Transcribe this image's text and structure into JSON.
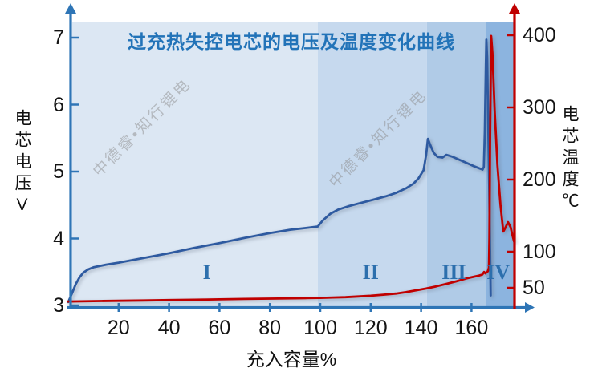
{
  "watermark": {
    "text": "中德睿•知行锂电"
  },
  "chart_data": {
    "type": "line",
    "title": "过充热失控电芯的电压及温度变化曲线",
    "xlabel": "充入容量%",
    "ylabel_left": "电芯电压V",
    "ylabel_right": "电芯温度℃",
    "xlim": [
      0,
      178
    ],
    "x_ticks": [
      20,
      40,
      60,
      80,
      100,
      120,
      140,
      160
    ],
    "ylim_left": [
      3,
      7.2
    ],
    "y_left_ticks": [
      3,
      4,
      5,
      6,
      7
    ],
    "ylim_right": [
      0,
      430
    ],
    "y_right_ticks": [
      50,
      100,
      200,
      300,
      400
    ],
    "axis_color_left": "#2e75b6",
    "axis_color_right": "#c00000",
    "grid": false,
    "legend": "none",
    "regions": [
      {
        "label": "I",
        "x_from": 0,
        "x_to": 99,
        "color": "#dce7f3",
        "label_x": 55
      },
      {
        "label": "II",
        "x_from": 99,
        "x_to": 142.3,
        "color": "#c6d9ee",
        "label_x": 120
      },
      {
        "label": "III",
        "x_from": 142.3,
        "x_to": 165.6,
        "color": "#b0cbe7",
        "label_x": 153
      },
      {
        "label": "IV",
        "x_from": 165.6,
        "x_to": 177,
        "color": "#8cb4df",
        "label_x": 170.6
      }
    ],
    "series": [
      {
        "name": "电芯电压",
        "y_axis": "left",
        "color": "#2e5aa0",
        "points": [
          [
            0,
            3.05
          ],
          [
            1.5,
            3.18
          ],
          [
            3,
            3.32
          ],
          [
            4.5,
            3.42
          ],
          [
            6,
            3.49
          ],
          [
            8,
            3.54
          ],
          [
            10,
            3.57
          ],
          [
            15,
            3.61
          ],
          [
            20,
            3.64
          ],
          [
            30,
            3.71
          ],
          [
            40,
            3.78
          ],
          [
            50,
            3.86
          ],
          [
            60,
            3.93
          ],
          [
            70,
            4.01
          ],
          [
            80,
            4.08
          ],
          [
            88,
            4.13
          ],
          [
            95,
            4.16
          ],
          [
            99,
            4.18
          ],
          [
            101,
            4.27
          ],
          [
            104,
            4.37
          ],
          [
            107,
            4.43
          ],
          [
            111,
            4.48
          ],
          [
            116,
            4.53
          ],
          [
            121,
            4.58
          ],
          [
            126,
            4.63
          ],
          [
            130,
            4.68
          ],
          [
            134,
            4.75
          ],
          [
            137,
            4.82
          ],
          [
            139,
            4.9
          ],
          [
            141,
            5.02
          ],
          [
            142,
            5.25
          ],
          [
            142.7,
            5.49
          ],
          [
            143.6,
            5.4
          ],
          [
            145,
            5.28
          ],
          [
            146.5,
            5.22
          ],
          [
            148.5,
            5.21
          ],
          [
            150,
            5.25
          ],
          [
            152.5,
            5.22
          ],
          [
            155,
            5.18
          ],
          [
            158,
            5.13
          ],
          [
            161,
            5.08
          ],
          [
            163,
            5.05
          ],
          [
            164.4,
            5.03
          ],
          [
            164.9,
            5.07
          ],
          [
            165.3,
            5.6
          ],
          [
            165.7,
            6.6
          ],
          [
            165.9,
            6.97
          ],
          [
            166.2,
            6.7
          ],
          [
            166.6,
            5.8
          ],
          [
            167,
            4.8
          ],
          [
            167.4,
            3.8
          ],
          [
            167.6,
            3.15
          ]
        ]
      },
      {
        "name": "电芯温度",
        "y_axis": "right",
        "color": "#c00000",
        "points": [
          [
            0,
            31
          ],
          [
            10,
            31.5
          ],
          [
            20,
            32
          ],
          [
            30,
            32.5
          ],
          [
            40,
            33
          ],
          [
            50,
            33.5
          ],
          [
            60,
            34
          ],
          [
            70,
            34.5
          ],
          [
            80,
            35
          ],
          [
            90,
            35.5
          ],
          [
            100,
            36
          ],
          [
            105,
            36.5
          ],
          [
            110,
            37
          ],
          [
            115,
            38
          ],
          [
            120,
            39
          ],
          [
            125,
            40.5
          ],
          [
            130,
            42
          ],
          [
            134,
            44
          ],
          [
            138,
            46.5
          ],
          [
            142,
            49
          ],
          [
            146,
            52
          ],
          [
            150,
            55.5
          ],
          [
            154,
            59
          ],
          [
            158,
            63
          ],
          [
            161,
            65.5
          ],
          [
            163,
            67
          ],
          [
            164.3,
            68.5
          ],
          [
            165,
            72
          ],
          [
            165.5,
            70
          ],
          [
            166,
            71.5
          ],
          [
            166.5,
            73
          ],
          [
            166.9,
            78
          ],
          [
            167.1,
            120
          ],
          [
            167.4,
            260
          ],
          [
            167.8,
            399
          ],
          [
            168.3,
            375
          ],
          [
            169.2,
            295
          ],
          [
            170.3,
            220
          ],
          [
            171.5,
            165
          ],
          [
            172.6,
            128
          ],
          [
            173.4,
            133
          ],
          [
            174.5,
            141
          ],
          [
            175.5,
            134
          ],
          [
            176.3,
            122
          ],
          [
            176.9,
            114
          ]
        ]
      }
    ]
  }
}
